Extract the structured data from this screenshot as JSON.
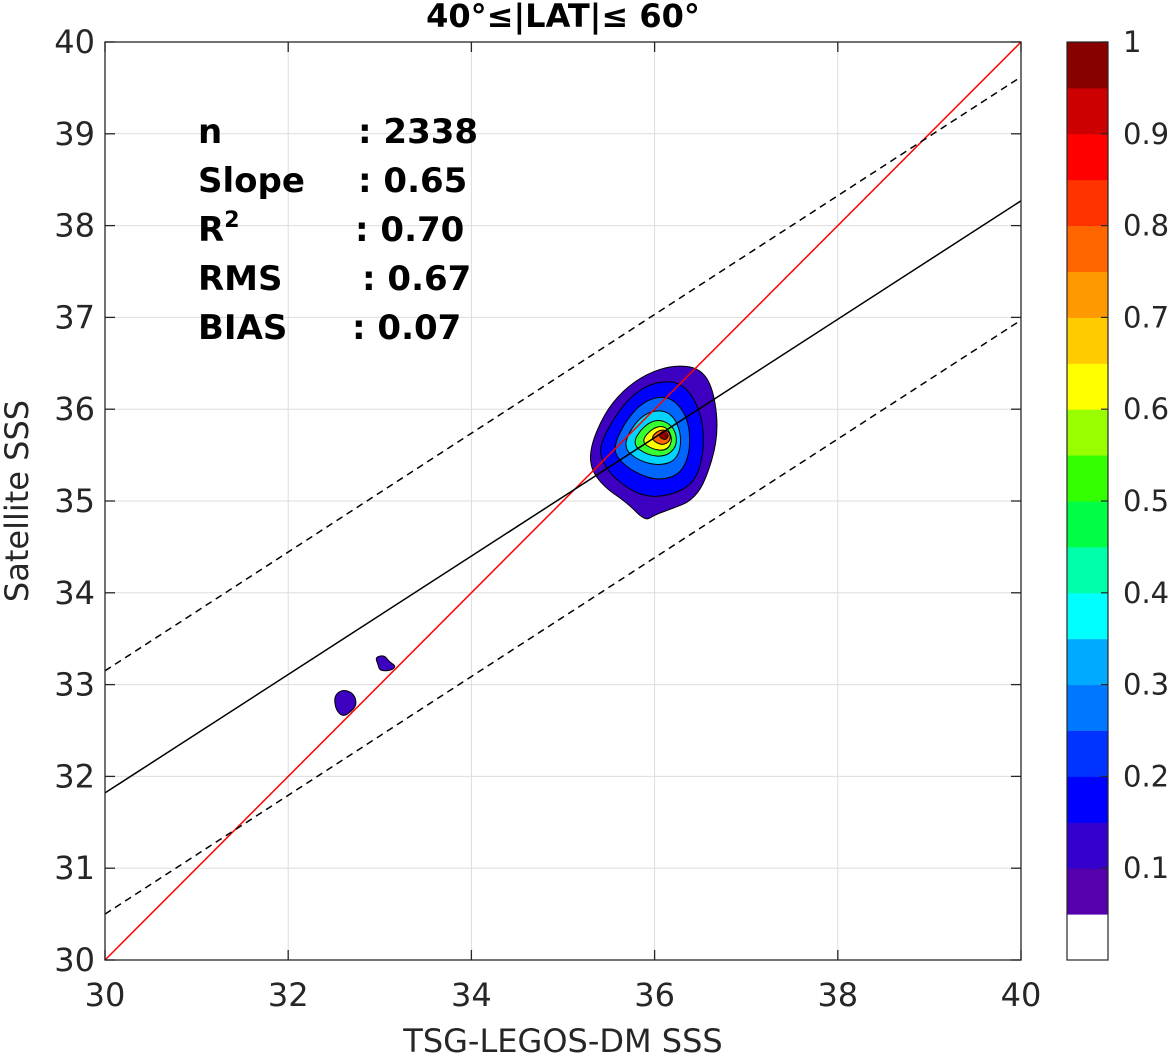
{
  "chart_data": {
    "type": "scatter",
    "title": "40°≤|LAT|≤ 60°",
    "xlabel": "TSG-LEGOS-DM SSS",
    "ylabel": "Satellite SSS",
    "xlim": [
      30,
      40
    ],
    "ylim": [
      30,
      40
    ],
    "xticks": [
      "30",
      "32",
      "34",
      "36",
      "38",
      "40"
    ],
    "yticks": [
      "30",
      "31",
      "32",
      "33",
      "34",
      "35",
      "36",
      "37",
      "38",
      "39",
      "40"
    ],
    "grid": true,
    "stats": [
      {
        "label": "n",
        "value": ": 2338"
      },
      {
        "label": "Slope",
        "value": ": 0.65"
      },
      {
        "label": "R",
        "sup": "2",
        "value": ": 0.70"
      },
      {
        "label": "RMS",
        "value": ": 0.67"
      },
      {
        "label": "BIAS",
        "value": ": 0.07"
      }
    ],
    "lines": [
      {
        "role": "one-to-one",
        "color": "#ff0000",
        "style": "solid",
        "x": [
          30,
          40
        ],
        "y": [
          30,
          40
        ]
      },
      {
        "role": "regression",
        "color": "#000000",
        "style": "solid",
        "x": [
          30,
          40
        ],
        "y": [
          31.82,
          38.27
        ]
      },
      {
        "role": "upper-bound",
        "color": "#000000",
        "style": "dashed",
        "x": [
          30,
          40
        ],
        "y": [
          33.15,
          39.62
        ]
      },
      {
        "role": "lower-bound",
        "color": "#000000",
        "style": "dashed",
        "x": [
          30,
          40
        ],
        "y": [
          30.5,
          36.97
        ]
      }
    ],
    "density_peak": {
      "x": 36.1,
      "y": 35.72,
      "value": 1.0
    },
    "density_contours": {
      "main": [
        {
          "level": 0.05,
          "points": [
            [
              35.3,
              35.6
            ],
            [
              35.45,
              35.95
            ],
            [
              35.65,
              36.2
            ],
            [
              35.9,
              36.38
            ],
            [
              36.2,
              36.48
            ],
            [
              36.5,
              36.45
            ],
            [
              36.65,
              36.2
            ],
            [
              36.7,
              35.7
            ],
            [
              36.55,
              35.2
            ],
            [
              36.4,
              35.0
            ],
            [
              36.2,
              34.92
            ],
            [
              36.0,
              34.85
            ],
            [
              35.9,
              34.78
            ],
            [
              35.7,
              34.98
            ],
            [
              35.45,
              35.15
            ],
            [
              35.3,
              35.35
            ]
          ],
          "color": "#3d00c0"
        },
        {
          "level": 0.1,
          "points": [
            [
              35.4,
              35.6
            ],
            [
              35.55,
              35.9
            ],
            [
              35.75,
              36.15
            ],
            [
              36.0,
              36.3
            ],
            [
              36.3,
              36.3
            ],
            [
              36.5,
              36.0
            ],
            [
              36.55,
              35.6
            ],
            [
              36.45,
              35.2
            ],
            [
              36.15,
              35.05
            ],
            [
              35.85,
              35.05
            ],
            [
              35.55,
              35.25
            ],
            [
              35.42,
              35.45
            ]
          ],
          "color": "#0000ff"
        },
        {
          "level": 0.2,
          "points": [
            [
              35.55,
              35.6
            ],
            [
              35.7,
              35.9
            ],
            [
              35.9,
              36.1
            ],
            [
              36.15,
              36.15
            ],
            [
              36.35,
              35.95
            ],
            [
              36.4,
              35.6
            ],
            [
              36.3,
              35.3
            ],
            [
              36.05,
              35.22
            ],
            [
              35.8,
              35.3
            ],
            [
              35.6,
              35.45
            ]
          ],
          "color": "#0066ff"
        },
        {
          "level": 0.35,
          "points": [
            [
              35.65,
              35.6
            ],
            [
              35.8,
              35.88
            ],
            [
              36.0,
              36.0
            ],
            [
              36.2,
              35.95
            ],
            [
              36.3,
              35.7
            ],
            [
              36.25,
              35.45
            ],
            [
              36.05,
              35.38
            ],
            [
              35.8,
              35.45
            ]
          ],
          "color": "#00d5ff"
        },
        {
          "level": 0.5,
          "points": [
            [
              35.75,
              35.62
            ],
            [
              35.88,
              35.82
            ],
            [
              36.05,
              35.9
            ],
            [
              36.22,
              35.8
            ],
            [
              36.25,
              35.6
            ],
            [
              36.12,
              35.48
            ],
            [
              35.92,
              35.5
            ]
          ],
          "color": "#33ff33"
        },
        {
          "level": 0.65,
          "points": [
            [
              35.85,
              35.65
            ],
            [
              35.98,
              35.8
            ],
            [
              36.12,
              35.82
            ],
            [
              36.2,
              35.68
            ],
            [
              36.14,
              35.55
            ],
            [
              35.98,
              35.56
            ]
          ],
          "color": "#ffff00"
        },
        {
          "level": 0.8,
          "points": [
            [
              35.95,
              35.68
            ],
            [
              36.05,
              35.78
            ],
            [
              36.16,
              35.76
            ],
            [
              36.18,
              35.66
            ],
            [
              36.08,
              35.6
            ]
          ],
          "color": "#ff6600"
        },
        {
          "level": 0.95,
          "points": [
            [
              36.04,
              35.7
            ],
            [
              36.1,
              35.76
            ],
            [
              36.16,
              35.72
            ],
            [
              36.12,
              35.66
            ]
          ],
          "color": "#cc0000"
        }
      ],
      "islands": [
        {
          "level": 0.05,
          "points": [
            [
              32.5,
              32.88
            ],
            [
              32.6,
              32.95
            ],
            [
              32.72,
              32.9
            ],
            [
              32.75,
              32.78
            ],
            [
              32.68,
              32.7
            ],
            [
              32.6,
              32.65
            ],
            [
              32.52,
              32.72
            ]
          ],
          "color": "#3d00c0"
        },
        {
          "level": 0.05,
          "points": [
            [
              32.95,
              33.3
            ],
            [
              33.05,
              33.32
            ],
            [
              33.1,
              33.25
            ],
            [
              33.18,
              33.2
            ],
            [
              33.12,
              33.15
            ],
            [
              33.0,
              33.15
            ],
            [
              32.98,
              33.22
            ]
          ],
          "color": "#3d00c0"
        }
      ]
    },
    "colorbar": {
      "ticks": [
        "0.1",
        "0.2",
        "0.3",
        "0.4",
        "0.5",
        "0.6",
        "0.7",
        "0.8",
        "0.9",
        "1"
      ],
      "tick_values": [
        0.1,
        0.2,
        0.3,
        0.4,
        0.5,
        0.6,
        0.7,
        0.8,
        0.9,
        1.0
      ],
      "range": [
        0,
        1
      ],
      "colors": [
        "#ffffff",
        "#5500aa",
        "#3300cc",
        "#0000ff",
        "#0033ff",
        "#0077ff",
        "#00aaff",
        "#00ffff",
        "#00ffaa",
        "#00ff44",
        "#33ff00",
        "#99ff00",
        "#ffff00",
        "#ffcc00",
        "#ff9900",
        "#ff6600",
        "#ff3300",
        "#ff0000",
        "#cc0000",
        "#880000"
      ]
    }
  }
}
